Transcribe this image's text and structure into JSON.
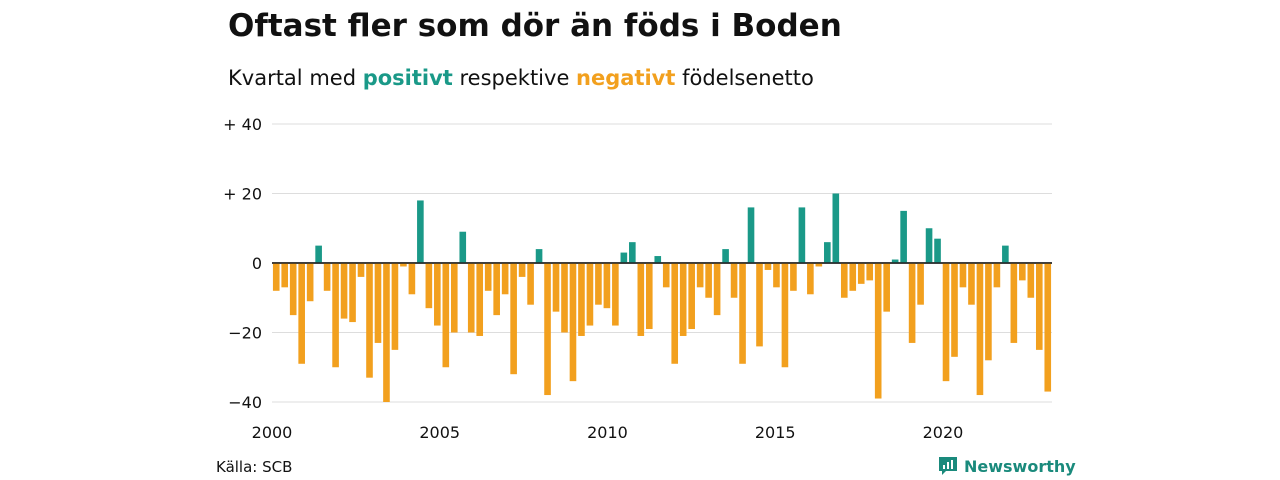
{
  "title": "Oftast fler som dör än föds i Boden",
  "subtitle": {
    "prefix": "Kvartal med ",
    "positive": "positivt",
    "middle": " respektive ",
    "negative": "negativt",
    "suffix": " födelsenetto"
  },
  "source": "Källa: SCB",
  "brand": "Newsworthy",
  "colors": {
    "positive": "#1a9988",
    "negative": "#f2a01e",
    "grid": "#dddddd",
    "brand": "#1a8a7c"
  },
  "chart_data": {
    "type": "bar",
    "x_start": "2000 Q1",
    "xlim": [
      2000,
      2023.25
    ],
    "ylim": [
      -40,
      40
    ],
    "yticks": [
      {
        "value": 40,
        "label": "+ 40"
      },
      {
        "value": 20,
        "label": "+ 20"
      },
      {
        "value": 0,
        "label": "0"
      },
      {
        "value": -20,
        "label": "−20"
      },
      {
        "value": -40,
        "label": "−40"
      }
    ],
    "xticks": [
      {
        "value": 2000,
        "label": "2000"
      },
      {
        "value": 2005,
        "label": "2005"
      },
      {
        "value": 2010,
        "label": "2010"
      },
      {
        "value": 2015,
        "label": "2015"
      },
      {
        "value": 2020,
        "label": "2020"
      }
    ],
    "grid": true,
    "values": [
      -8,
      -7,
      -15,
      -29,
      -11,
      5,
      -8,
      -30,
      -16,
      -17,
      -4,
      -33,
      -23,
      -40,
      -25,
      -1,
      -9,
      18,
      -13,
      -18,
      -30,
      -20,
      9,
      -20,
      -21,
      -8,
      -15,
      -9,
      -32,
      -4,
      -12,
      4,
      -38,
      -14,
      -20,
      -34,
      -21,
      -18,
      -12,
      -13,
      -18,
      3,
      6,
      -21,
      -19,
      2,
      -7,
      -29,
      -21,
      -19,
      -7,
      -10,
      -15,
      4,
      -10,
      -29,
      16,
      -24,
      -2,
      -7,
      -30,
      -8,
      16,
      -9,
      -1,
      6,
      20,
      -10,
      -8,
      -6,
      -5,
      -39,
      -14,
      1,
      15,
      -23,
      -12,
      10,
      7,
      -34,
      -27,
      -7,
      -12,
      -38,
      -28,
      -7,
      5,
      -23,
      -5,
      -10,
      -25,
      -37
    ]
  }
}
